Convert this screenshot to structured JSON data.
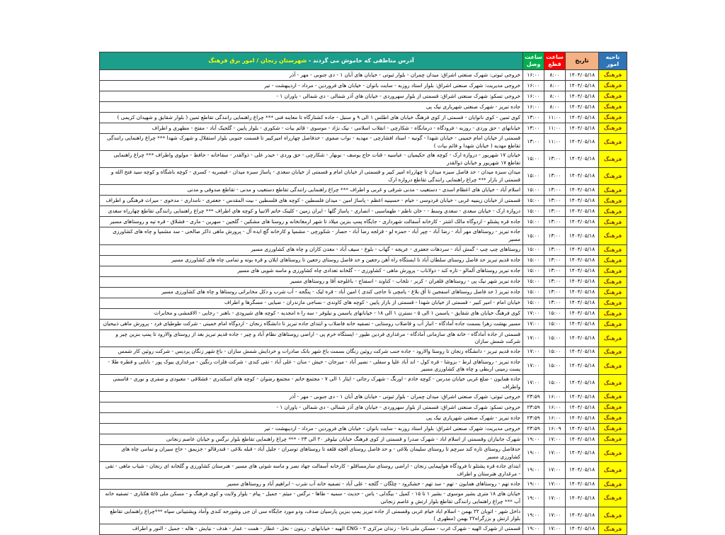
{
  "table": {
    "colors": {
      "header_region_bg": "#2E75B6",
      "header_date_bg": "#F4B183",
      "header_cut_bg": "#FF0000",
      "header_connect_bg": "#00B050",
      "header_address_bg": "#1B9E8A",
      "header_text": "#FFFFFF",
      "header_highlight_text": "#FFFF00",
      "region_cell_bg": "#FFFF00",
      "region_cell_text": "#843C0C",
      "border": "#404040"
    },
    "header": {
      "region_label": "ناحیه امور",
      "date_label": "تاریخ",
      "cut_label": "ساعت قطع",
      "connect_label": "ساعت وصل",
      "address_label_prefix": "آدرس مناطقی که خاموش می گردند - ",
      "address_label_highlight": "شهرستان زنجان / امور برق فرهنگ"
    },
    "rows": [
      {
        "region": "فرهنگ",
        "date": "۱۴۰۴/۰۵/۱۸",
        "cut": "۸:۰۰",
        "connect": "۱۶:۰۰",
        "address": "خروجی ثبوتی: شهرک صنعتی اشراق: میدان چمران - بلوار ثبوتی - خیابان های آبان ۱ - دی جنوبی - مهر - آذر"
      },
      {
        "region": "فرهنگ",
        "date": "۱۴۰۴/۰۵/۱۸",
        "cut": "۸:۰۰",
        "connect": "۱۶:۰۰",
        "address": "خروجی مدیریت: شهرک صنعتی اشراق: بلوار استاد روزبه - سایت بانوان - خیابان های فروردین - مرداد - اردیبهشت - تیر"
      },
      {
        "region": "فرهنگ",
        "date": "۱۴۰۴/۰۵/۱۸",
        "cut": "۸:۰۰",
        "connect": "۱۶:۰۰",
        "address": "خروجی تسکو: شهرک صنعتی اشراق: قسمتی از بلوار سهروردی - خیابان های آذر شمالی - دی شمالی - یاوران ۱ -"
      },
      {
        "region": "فرهنگ",
        "date": "۱۴۰۴/۰۵/۱۸",
        "cut": "۸:۰۰",
        "connect": "۱۶:۰۰",
        "address": "جاده تبریز - شهرک صنعتی شهریاری نیک پی"
      },
      {
        "region": "فرهنگ",
        "date": "۱۴۰۴/۰۵/۱۸",
        "cut": "۱۱:۰۰",
        "connect": "۱۳:۰۰",
        "address": "کوی ثمین - کوی نانوایان - قسمتی از کوی فرهنگ خیابان های اطلس ۱ الی ۹ و سنبل - جاده کشتارگاه تا معاینه فنی *** چراغ راهنمایی رانندگی تقاطع ثمین ( بلوار شقایق و شهیدان کریمی )"
      },
      {
        "region": "فرهنگ",
        "date": "۱۴۰۴/۰۵/۱۸",
        "cut": "۱۱:۰۰",
        "connect": "۱۳:۰۰",
        "address": "خیابانهای - حق وردی - روزبه - فرودگاه - درمانگاه - شکارچی - انقلاب اسلامی - نیک نژاد - موسوی - قائم بیات - شکوری - بلوار پایین - گلجیک آباد - مفتح - مطهری و اطراف"
      },
      {
        "region": "فرهنگ",
        "date": "۱۴۰۴/۰۵/۱۸",
        "cut": "۱۱:۰۰",
        "connect": "۱۳:۰۰",
        "address": "قسمتی از خیابان امام خمینی - خیابان شهدا - گونیه - استاد افشارچی - مهدیه - نواب صفوی - حدفاصل چهارراه امیرکبیر تا قسمت جنوبی بلوار استقلال و شهرک شهدا *** چراغ راهنمایی رانندگی تقاطع مهدیه ( خیابان شهدا و قائم بیات )"
      },
      {
        "region": "فرهنگ",
        "date": "۱۴۰۴/۰۵/۱۸",
        "cut": "۱۳:۰۰",
        "connect": "۱۵:۰۰",
        "address": "خیابان ۱۷ شهریور - دروازه ارک - کوچه های حکیمیان - عباسیه - قنات حاج یوسف - نوبهار - شکارچی - حق وردی - حیدر علی - ذوالقدر - سقاخانه - حافظ - مولوی واطراف *** چراغ راهنمایی تقاطع ۱۷ شهریور و خیابان ذوالقدر"
      },
      {
        "region": "فرهنگ",
        "date": "۱۴۰۴/۰۵/۱۸",
        "cut": "۱۳:۰۰",
        "connect": "۱۵:۰۰",
        "address": "میدان سبزه میدان - حد فاصل سبزه میدان تا چهارراه امیر کبیر و قسمتی از خیابان امام و قسمتی از خیابان سعدی - پاساژ سبزه میدان - قیصریه - کسری - کوچه باشگاه و کوچه سید فتح الله و قسمتی از بازار *** چراغ راهنمایی رانندگی تقاطع دروازه ارک"
      },
      {
        "region": "فرهنگ",
        "date": "۱۴۰۴/۰۵/۱۸",
        "cut": "۱۳:۰۰",
        "connect": "۱۵:۰۰",
        "address": "اسلام آباد - خیابان های اعظام اسدی - دستغیب - مدنی شرقی و غربی و اطراف *** چراغ راهنمایی رانندگی تقاطع دستغیب و مدنی - تقاطع صدوقی و مدنی"
      },
      {
        "region": "فرهنگ",
        "date": "۱۴۰۴/۰۵/۱۸",
        "cut": "۱۳:۰۰",
        "connect": "۱۵:۰۰",
        "address": "قسمتی از خیابان زینبیه غربی - خیابان فردوسی - خیام - حسینیه اعظم - پاساژ امین - میدان فلسطین - کوچه های فلسطین - بیت المقدس - جعفری - نامداری - مدخوی - میراث فرهنگی و اطراف"
      },
      {
        "region": "فرهنگ",
        "date": "۱۴۰۴/۰۵/۱۸",
        "cut": "۱۳:۰۰",
        "connect": "۱۵:۰۰",
        "address": "دروازه ارک - خیابان سعدی - سعدی وسط - - خان ناظم - طهماسبی - انصاری - پاساژ گلها - ایران زمین - کلینک خاتم الانبیا و کوچه های اطراف *** چراغ راهنمایی رانندگی تقاطع چهارراه سعدی"
      },
      {
        "region": "فرهنگ",
        "date": "۱۴۰۴/۰۵/۱۸",
        "cut": "۱۳:۰۰",
        "connect": "۱۵:۰۰",
        "address": "جاده قره پشتلو - اردوگاه مالک اشتر - کارخانه آسفالت شهرداری - جایگاه پمپ بنزین میلاد تا شهر ارمغانخانه و روستا های مشکین - گلجین - سهرین - ماری - قشلاق - قره تپه و روستاهای مسیر"
      },
      {
        "region": "فرهنگ",
        "date": "۱۴۰۴/۰۵/۱۸",
        "cut": "۱۳:۰۰",
        "connect": "۱۵:۰۰",
        "address": "جاده تبریز - روستاهای مهر آباد - رضا آباد - چپر آباد - حمزه لو - قزلجه رضا آباد - حصار - شکورچی - مشمپا و کارخانه گچ ایده آل - پرورش ماهی ذاکر صالحی - سد مشمپا و چاه های کشاورزی مسیر"
      },
      {
        "region": "فرهنگ",
        "date": "۱۴۰۴/۰۵/۱۸",
        "cut": "۱۳:۰۰",
        "connect": "۱۵:۰۰",
        "address": "روستاهای چپ چپ - گمش آباد - سردهات جعفری - عریجه - گهاب - بلوغ - سیف آباد - معدن کاران و چاه های کشاورزی مسیر"
      },
      {
        "region": "فرهنگ",
        "date": "۱۴۰۴/۰۵/۱۸",
        "cut": "۱۳:۰۰",
        "connect": "۱۵:۰۰",
        "address": "جاده قدیم تبریز حد فاصل روستای سلطان آباد تا ایستگاه راه آهن رجعین و حد فاصل روستای رجعین تا روستاهای ایلان و قره بوته و تمامی چاه های کشاورزی مسیر"
      },
      {
        "region": "فرهنگ",
        "date": "۱۴۰۴/۰۵/۱۸",
        "cut": "۱۳:۰۰",
        "connect": "۱۵:۰۰",
        "address": "جاده تبریز روستاهای آلمالو - تازه کند - دولاناب - پرورش ماهی - کشاورزی - - گلخانه تعدادی چاه کشاورزی و ماسه شویی های مسیر"
      },
      {
        "region": "فرهنگ",
        "date": "۱۴۰۴/۰۵/۱۸",
        "cut": "۱۳:۰۰",
        "connect": "۱۵:۰۰",
        "address": "جاده تبریز شهر نیک پی - روستاهای قلعران - کزبر - تلخاب - کناوند - اسفناج - باغلوجه آقا و روستاهای مسیر"
      },
      {
        "region": "فرهنگ",
        "date": "۱۴۰۴/۰۵/۱۸",
        "cut": "۱۳:۰۰",
        "connect": "۱۵:۰۰",
        "address": "جاده تبریز ( حد فاصل روستاهای اسفجین تا آق بلاغ - یامچی تا حاجی کندی ) امین آباد - قره لیک - پنگجه - آب شرب و دکل مخابراتی روستاها و چاه های کشاورزی مسیر"
      },
      {
        "region": "فرهنگ",
        "date": "۱۴۰۴/۰۵/۱۸",
        "cut": "۱۳:۰۰",
        "connect": "۱۵:۰۰",
        "address": "خیابان امام - امیر کبیر - قسمتی از خیابان شهدا - قسمتی از بازار پایین - کوچه های کاوندی - نساجی مازندران - ضیایی - مسگرها و اطراف"
      },
      {
        "region": "فرهنگ",
        "date": "۱۴۰۴/۰۵/۱۸",
        "cut": "۱۵:۰۰",
        "connect": "۱۷:۰۰",
        "address": "کوی فرهنگ خیابان های شقایق - یاسمن ۱ الی ۵ - نسترن ۱ الی ۱۸ - خیابانهای یاسمن و نیلوفر - سه را ه امجدیه - کوچه های شیرودی - باهنر - رجایی - الاقمشی و مخابرات"
      },
      {
        "region": "فرهنگ",
        "date": "۱۴۰۴/۰۵/۱۸",
        "cut": "۱۵:۰۰",
        "connect": "۱۷:۰۰",
        "address": "مسیر بهشت زهرا بسمت جاده آمادگاه - انبار آب و فاضلاب روستایی - تصفیه خانه فاضلاب و ابتدای جاده تبریز تا دانشگاه زنجان - اردوگاه امام خمینی - شرکت طوطیای فرد - پرورش ماهی ذبیحیان"
      },
      {
        "region": "فرهنگ",
        "date": "۱۴۰۴/۰۵/۱۸",
        "cut": "۱۵:۰۰",
        "connect": "۱۷:۰۰",
        "address": "قسمتی از جاده آمادگاه - خانه های سازمانی آمادگاه - مرغداری فردین طیور - ایستگاه خرم پی - اراضی روستاهای نظام آباد و چیر - جاده قدیم تبریز بعد از روستای والارود تا پمپ بنزین چیر و شرکت شمش سازان"
      },
      {
        "region": "فرهنگ",
        "date": "۱۴۰۴/۰۵/۱۸",
        "cut": "۱۵:۰۰",
        "connect": "۱۷:۰۰",
        "address": "جاده قدیم تبریز - دانشگاه زنجان تا روستا والارود - جاده جنب شرکت روئین زنگان بسمت باغ شهر بانک صادرات و خردایش شمش سازان - باغ شهر زنگان پردیس - شرکت روئین کار شمس"
      },
      {
        "region": "فرهنگ",
        "date": "۱۴۰۴/۰۵/۱۸",
        "cut": "۱۵:۰۰",
        "connect": "۱۷:۰۰",
        "address": "جاده تبریز - روستاهای لرط - بزوشا - قره کول - اند آباد علیا و سفلی - نصیر آباد - میرجان - خیش - منان - علی آباد - تقی کندی - شرکت فلزات رنگین - مرغداری بیوک پور - بابایی و قطره طلا - پست زمینی اربطی و چاه های کشاورزی مسیر"
      },
      {
        "region": "فرهنگ",
        "date": "۱۴۰۴/۰۵/۱۸",
        "cut": "۱۵:۰۰",
        "connect": "۱۷:۰۰",
        "address": "جاده همایون - ضلع غربی خیابان مدرس - کوچه خادم - اورنگ - شهرک رجائی - ایثار ۱ الی ۷ - مجتمع خاتم - مجتمع رضوان - کوچه های اسکندری - قشلاقی - معبودی و صفری و نوری - قاسمی واطراف"
      },
      {
        "region": "فرهنگ",
        "date": "۱۴۰۴/۰۵/۱۸",
        "cut": "۱۶:۰۰",
        "connect": "۲۳:۵۹",
        "address": "خروجی ثبوتی: شهرک صنعتی اشراق: میدان چمران - بلوار ثبوتی - خیابان های آبان ۱ - دی جنوبی - مهر - آذر"
      },
      {
        "region": "فرهنگ",
        "date": "۱۴۰۴/۰۵/۱۸",
        "cut": "۱۶:۰۰",
        "connect": "۲۳:۵۹",
        "address": "خروجی تسکو: شهرک صنعتی اشراق: قسمتی از بلوار سهروردی - خیابان های آذر شمالی - دی شمالی - یاوران ۱ -"
      },
      {
        "region": "فرهنگ",
        "date": "۱۴۰۴/۰۵/۱۸",
        "cut": "۱۶:۰۰",
        "connect": "۲۳:۵۹",
        "address": "جاده تبریز - شهرک صنعتی شهریاری نیک پی"
      },
      {
        "region": "فرهنگ",
        "date": "۱۴۰۴/۰۵/۱۸",
        "cut": "۱۶:۰۹",
        "connect": "۲۳:۵۹",
        "address": "خروجی مدیریت: شهرک صنعتی اشراق: بلوار استاد روزبه - سایت بانوان - خیابان های فروردین - مرداد - اردیبهشت - تیر"
      },
      {
        "region": "فرهنگ",
        "date": "۱۴۰۴/۰۵/۱۸",
        "cut": "۱۷:۰۰",
        "connect": "۱۹:۰۰",
        "address": "شهرک جانبازان وقسمتی از اسلام اباد - شهرک صدرا و قسمتی از کوی فرهنگ خیابان نیلوفر ۲۰ الی ۲۳ - *** چراغ راهنمایی تقاطع بلوار نرگس و خیابان عاصم زنجانی"
      },
      {
        "region": "فرهنگ",
        "date": "۱۴۰۴/۰۵/۱۸",
        "cut": "۱۷:۰۰",
        "connect": "۱۹:۰۰",
        "address": "حدفاصل روستای تازه کند سرچم تا روستای سلیمان بلاغی - و حد فاصل روستای آقچه قلعه تا روستاهای توسران - جلیل آباد - قبله بلاغی - قندرقالو - جزیمق - حاج سیران و تمامی چاه های کشاورزی مسیر"
      },
      {
        "region": "فرهنگ",
        "date": "۱۴۰۴/۰۵/۱۸",
        "cut": "۱۷:۰۰",
        "connect": "۱۹:۰۰",
        "address": "ابتدای جاده قره پشتلو تا فرودگاه هواپیمایی زنجان - اراضی روستای سارمساقلو - کارخانه آسفالت جهاد نصر و ماسه شوئی های مسیر - هنرستان کشاورزی و گلخانه ای زنجان - شباب ماهی - تقی - مرغداری هنرستان و اطراف"
      },
      {
        "region": "فرهنگ",
        "date": "۱۴۰۴/۰۵/۱۸",
        "cut": "۱۷:۰۰",
        "connect": "۱۹:۰۰",
        "address": "جاده تهم - روستاهای همایون - تهم - سد تهم - خشکرود - چلگان - گلجه - علی آباد - تصفیه خانه آب شرب - ابراهیم آباد و روستاهای مسیر"
      },
      {
        "region": "فرهنگ",
        "date": "۱۴۰۴/۰۵/۱۸",
        "cut": "۱۷:۰۰",
        "connect": "۱۹:۰۰",
        "address": "خیابان های ۱۸ متری بشیر موسوی - بشیر ۱ تا ۱۵ - کمیل - بیگدلی - یاس - حدیث - سمیه - طاها - نرگس - میثم - جمیل - پیام - بلوار ولایت و کوی فرهنگ و - مسکن ملی ۵/۵ هکتاری - تصفیه خانه آب *** چراغ راهنمایی رانندگی تقاطع بلوار ارتش و عاصم زنجانی"
      },
      {
        "region": "فرهنگ",
        "date": "۱۴۰۴/۰۵/۱۸",
        "cut": "۱۷:۰۰",
        "connect": "۱۹:۰۰",
        "address": "داخل شهر - اتوبان ۲۲ بهمن - اسلام اباد خیام غربی وقسمتی از جاده تبریز پمپ بنزین پارسیان صدف، ودو مورد جایگاه سی ان جی وشورجه کندی وآماد وپشتیبانی سپاه ***چراغ راهنمایی تقاطع بلوار ارتش و بزرگراه۲۲ بهمن (مطهری )"
      },
      {
        "region": "فرهنگ",
        "date": "۱۴۰۴/۰۵/۱۸",
        "cut": "۱۷:۰۰",
        "connect": "۱۹:۰۰",
        "address": "قسمتی از شهرک الهیه - شهرک غرب - مسکن ملی ناجا - زندان مرکزی ۲ - CNG الهیه - خیابانهای - زیتون - نخل - عطار - همت - عمار - هدف - نیایش - هاله - جمیل - النور و اطراف"
      }
    ]
  }
}
